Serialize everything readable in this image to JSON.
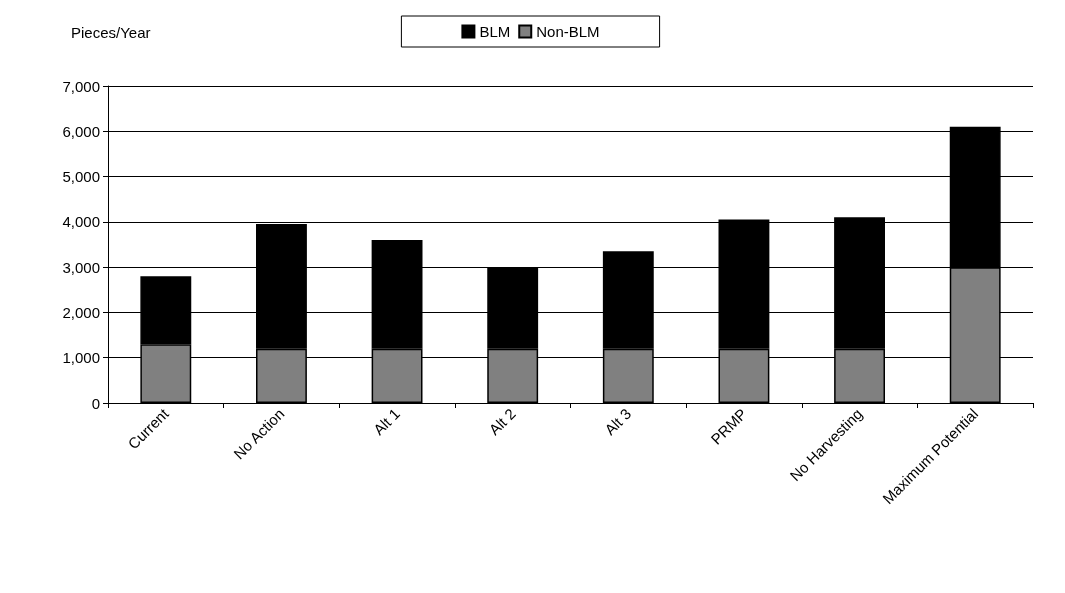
{
  "chart_data": {
    "type": "bar",
    "stacked": true,
    "ylabel": "Pieces/Year",
    "categories": [
      "Current",
      "No Action",
      "Alt 1",
      "Alt 2",
      "Alt 3",
      "PRMP",
      "No Harvesting",
      "Maximum Potential"
    ],
    "series": [
      {
        "name": "Non-BLM",
        "color": "#808080",
        "values": [
          1300,
          1200,
          1200,
          1200,
          1200,
          1200,
          1200,
          3000
        ]
      },
      {
        "name": "BLM",
        "color": "#000000",
        "values": [
          1500,
          2750,
          2400,
          1800,
          2150,
          2850,
          2900,
          3100
        ]
      }
    ],
    "ylim": [
      0,
      7000
    ],
    "yticks": [
      0,
      {
        "value": 1000,
        "label": "1,000"
      },
      {
        "value": 2000,
        "label": "2,000"
      },
      {
        "value": 3000,
        "label": "3,000"
      },
      {
        "value": 4000,
        "label": "4,000"
      },
      {
        "value": 5000,
        "label": "5,000"
      },
      {
        "value": 6000,
        "label": "6,000"
      },
      {
        "value": 7000,
        "label": "7,000"
      }
    ],
    "grid": "y",
    "legend": "top"
  }
}
